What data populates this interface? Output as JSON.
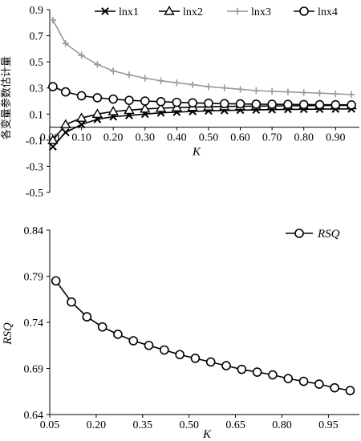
{
  "chart_data": [
    {
      "type": "line",
      "ylabel": "各变量参数估计量",
      "xlabel": "K",
      "xlim": [
        0,
        0.97
      ],
      "ylim": [
        -0.5,
        0.9
      ],
      "xticks": [
        "0.00",
        "0.10",
        "0.20",
        "0.30",
        "0.40",
        "0.50",
        "0.60",
        "0.70",
        "0.80",
        "0.90"
      ],
      "yticks": [
        "-0.5",
        "-0.3",
        "-0.1",
        "0.1",
        "0.3",
        "0.5",
        "0.7",
        "0.9"
      ],
      "legend_position": "top",
      "x": [
        0.01,
        0.05,
        0.1,
        0.15,
        0.2,
        0.25,
        0.3,
        0.35,
        0.4,
        0.45,
        0.5,
        0.55,
        0.6,
        0.65,
        0.7,
        0.75,
        0.8,
        0.85,
        0.9,
        0.95
      ],
      "series": [
        {
          "name": "lnx1",
          "marker": "x",
          "color": "#000000",
          "values": [
            -0.15,
            -0.04,
            0.02,
            0.06,
            0.08,
            0.09,
            0.1,
            0.11,
            0.115,
            0.12,
            0.125,
            0.128,
            0.13,
            0.132,
            0.134,
            0.136,
            0.137,
            0.138,
            0.139,
            0.14
          ]
        },
        {
          "name": "lnx2",
          "marker": "triangle",
          "color": "#000000",
          "values": [
            -0.1,
            0.02,
            0.07,
            0.1,
            0.12,
            0.13,
            0.14,
            0.145,
            0.15,
            0.153,
            0.156,
            0.158,
            0.16,
            0.161,
            0.162,
            0.163,
            0.164,
            0.165,
            0.166,
            0.166
          ]
        },
        {
          "name": "lnx3",
          "marker": "plus",
          "color": "#999999",
          "values": [
            0.82,
            0.64,
            0.55,
            0.48,
            0.43,
            0.4,
            0.375,
            0.355,
            0.34,
            0.325,
            0.31,
            0.3,
            0.29,
            0.28,
            0.275,
            0.27,
            0.265,
            0.26,
            0.255,
            0.25
          ]
        },
        {
          "name": "lnx4",
          "marker": "circle",
          "color": "#000000",
          "values": [
            0.31,
            0.27,
            0.24,
            0.225,
            0.215,
            0.205,
            0.2,
            0.195,
            0.19,
            0.186,
            0.183,
            0.18,
            0.178,
            0.176,
            0.175,
            0.174,
            0.173,
            0.172,
            0.171,
            0.17
          ]
        }
      ]
    },
    {
      "type": "line",
      "ylabel": "RSQ",
      "xlabel": "K",
      "xlim": [
        0.05,
        1.05
      ],
      "ylim": [
        0.64,
        0.84
      ],
      "xticks": [
        "0.05",
        "0.20",
        "0.35",
        "0.50",
        "0.65",
        "0.80",
        "0.95"
      ],
      "yticks": [
        "0.64",
        "0.69",
        "0.74",
        "0.79",
        "0.84"
      ],
      "legend_position": "top-right",
      "x": [
        0.07,
        0.12,
        0.17,
        0.22,
        0.27,
        0.32,
        0.37,
        0.42,
        0.47,
        0.52,
        0.57,
        0.62,
        0.67,
        0.72,
        0.77,
        0.82,
        0.87,
        0.92,
        0.97,
        1.02
      ],
      "series": [
        {
          "name": "RSQ",
          "marker": "circle",
          "color": "#000000",
          "values": [
            0.785,
            0.762,
            0.746,
            0.735,
            0.727,
            0.72,
            0.715,
            0.71,
            0.705,
            0.701,
            0.697,
            0.693,
            0.689,
            0.686,
            0.683,
            0.679,
            0.676,
            0.673,
            0.669,
            0.666
          ]
        }
      ]
    }
  ]
}
